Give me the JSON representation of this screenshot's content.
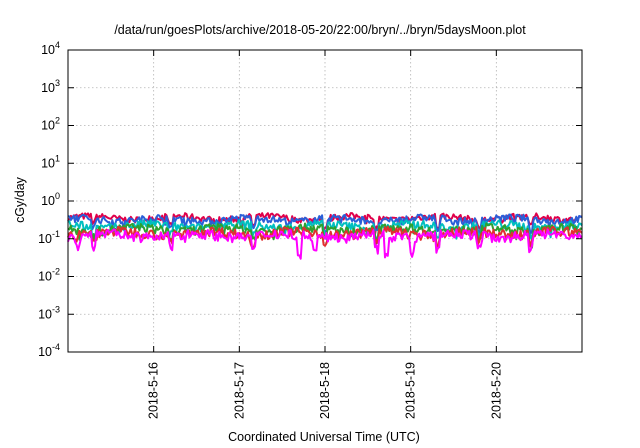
{
  "chart_data": {
    "type": "line",
    "title": "/data/run/goesPlots/archive/2018-05-20/22:00/bryn/../bryn/5daysMoon.plot",
    "xlabel": "Coordinated Universal Time (UTC)",
    "ylabel": "cGy/day",
    "yscale": "log",
    "ylim": [
      0.0001,
      10000
    ],
    "xlim": [
      "2018-05-15T00:00",
      "2018-05-21T00:00"
    ],
    "grid": true,
    "y_ticks": [
      {
        "value": 0.0001,
        "base": "10",
        "exp": "-4"
      },
      {
        "value": 0.001,
        "base": "10",
        "exp": "-3"
      },
      {
        "value": 0.01,
        "base": "10",
        "exp": "-2"
      },
      {
        "value": 0.1,
        "base": "10",
        "exp": "-1"
      },
      {
        "value": 1,
        "base": "10",
        "exp": "0"
      },
      {
        "value": 10,
        "base": "10",
        "exp": "1"
      },
      {
        "value": 100,
        "base": "10",
        "exp": "2"
      },
      {
        "value": 1000,
        "base": "10",
        "exp": "3"
      },
      {
        "value": 10000,
        "base": "10",
        "exp": "4"
      }
    ],
    "x_ticks": [
      {
        "value": "2018-05-16T00:00",
        "label": "2018-5-16"
      },
      {
        "value": "2018-05-17T00:00",
        "label": "2018-5-17"
      },
      {
        "value": "2018-05-18T00:00",
        "label": "2018-5-18"
      },
      {
        "value": "2018-05-19T00:00",
        "label": "2018-5-19"
      },
      {
        "value": "2018-05-20T00:00",
        "label": "2018-5-20"
      }
    ],
    "series": [
      {
        "color": "#e0004a",
        "level": 0.36,
        "spread": 0.06,
        "dips": [
          [
            0.05,
            0.7
          ],
          [
            0.2,
            0.55
          ],
          [
            0.36,
            0.6
          ],
          [
            0.5,
            0.5
          ],
          [
            0.6,
            0.55
          ],
          [
            0.72,
            0.55
          ],
          [
            0.8,
            0.6
          ],
          [
            0.9,
            0.55
          ]
        ]
      },
      {
        "color": "#2a5fd8",
        "level": 0.33,
        "spread": 0.06,
        "dips": [
          [
            0.05,
            0.65
          ],
          [
            0.2,
            0.5
          ],
          [
            0.36,
            0.55
          ],
          [
            0.5,
            0.45
          ],
          [
            0.6,
            0.5
          ],
          [
            0.72,
            0.5
          ],
          [
            0.8,
            0.55
          ],
          [
            0.9,
            0.5
          ]
        ]
      },
      {
        "color": "#00bfbf",
        "level": 0.22,
        "spread": 0.05,
        "dips": [
          [
            0.05,
            0.7
          ],
          [
            0.2,
            0.6
          ],
          [
            0.36,
            0.6
          ],
          [
            0.5,
            0.55
          ],
          [
            0.6,
            0.55
          ],
          [
            0.72,
            0.55
          ],
          [
            0.8,
            0.6
          ],
          [
            0.9,
            0.55
          ]
        ]
      },
      {
        "color": "#2fa02f",
        "level": 0.18,
        "spread": 0.04,
        "dips": [
          [
            0.05,
            0.7
          ],
          [
            0.2,
            0.6
          ],
          [
            0.36,
            0.6
          ],
          [
            0.5,
            0.55
          ],
          [
            0.6,
            0.55
          ],
          [
            0.72,
            0.55
          ],
          [
            0.8,
            0.6
          ],
          [
            0.9,
            0.55
          ]
        ]
      },
      {
        "color": "#e03030",
        "level": 0.145,
        "spread": 0.035,
        "dips": [
          [
            0.05,
            0.7
          ],
          [
            0.2,
            0.6
          ],
          [
            0.36,
            0.6
          ],
          [
            0.5,
            0.55
          ],
          [
            0.6,
            0.55
          ],
          [
            0.72,
            0.55
          ],
          [
            0.8,
            0.6
          ],
          [
            0.9,
            0.55
          ]
        ]
      },
      {
        "color": "#ff00ff",
        "level": 0.125,
        "spread": 0.03,
        "dips": [
          [
            0.02,
            0.55
          ],
          [
            0.05,
            0.5
          ],
          [
            0.2,
            0.5
          ],
          [
            0.36,
            0.45
          ],
          [
            0.45,
            0.25
          ],
          [
            0.48,
            0.4
          ],
          [
            0.6,
            0.4
          ],
          [
            0.62,
            0.3
          ],
          [
            0.67,
            0.35
          ],
          [
            0.72,
            0.4
          ],
          [
            0.8,
            0.45
          ],
          [
            0.9,
            0.45
          ]
        ]
      }
    ]
  }
}
